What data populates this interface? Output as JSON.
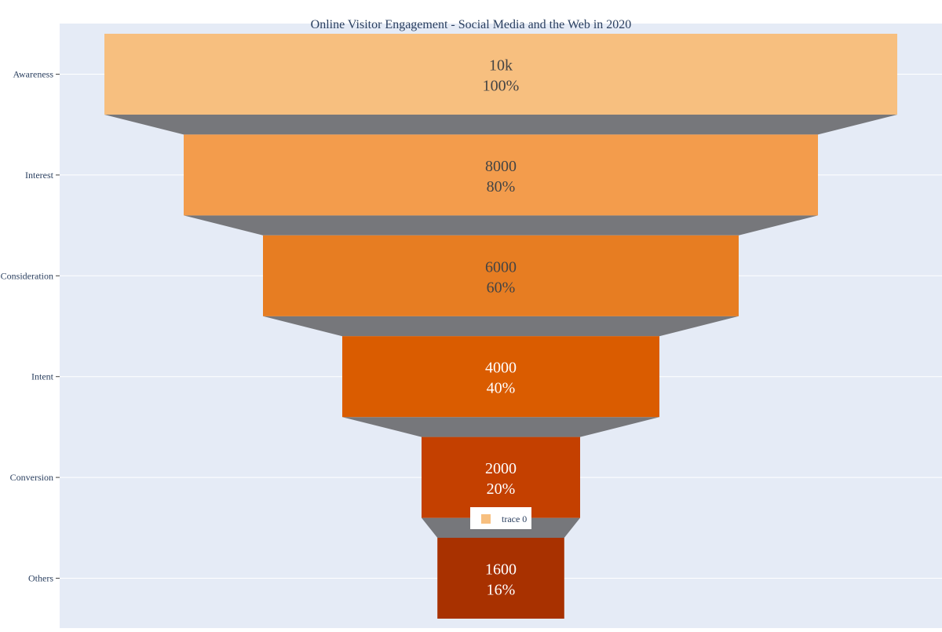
{
  "chart_data": {
    "type": "funnel",
    "title": "Online Visitor Engagement - Social Media and the Web in 2020",
    "stages": [
      {
        "label": "Awareness",
        "value": 10000,
        "value_text": "10k",
        "percent_text": "100%",
        "color": "#f7bf7f",
        "text_color": "#444444"
      },
      {
        "label": "Interest",
        "value": 8000,
        "value_text": "8000",
        "percent_text": "80%",
        "color": "#f39c4c",
        "text_color": "#444444"
      },
      {
        "label": "Consideration",
        "value": 6000,
        "value_text": "6000",
        "percent_text": "60%",
        "color": "#e77d22",
        "text_color": "#444444"
      },
      {
        "label": "Intent",
        "value": 4000,
        "value_text": "4000",
        "percent_text": "40%",
        "color": "#da5c00",
        "text_color": "#ffffff"
      },
      {
        "label": "Conversion",
        "value": 2000,
        "value_text": "2000",
        "percent_text": "20%",
        "color": "#c44000",
        "text_color": "#ffffff"
      },
      {
        "label": "Others",
        "value": 1600,
        "value_text": "1600",
        "percent_text": "16%",
        "color": "#a83100",
        "text_color": "#ffffff"
      }
    ],
    "connector_color": "#76777b",
    "plot_background": "#e5ebf6",
    "gridlines": true,
    "legend": {
      "entries": [
        {
          "name": "trace 0",
          "color": "#f7bf7f"
        }
      ],
      "placement": "bottom-center"
    }
  }
}
